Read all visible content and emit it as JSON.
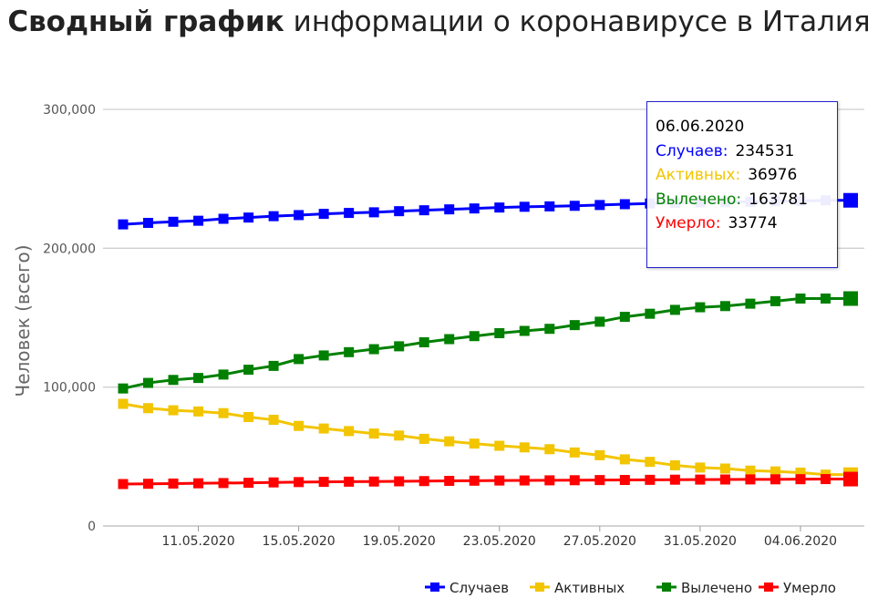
{
  "title": {
    "bold": "Сводный график",
    "rest": " информации о коронавирусе в Италия"
  },
  "tooltip": {
    "date": "06.06.2020",
    "rows": [
      {
        "label": "Случаев:",
        "value": "234531",
        "color": "#0000ff"
      },
      {
        "label": "Активных:",
        "value": "36976",
        "color": "#f2c500"
      },
      {
        "label": "Вылечено:",
        "value": "163781",
        "color": "#008000"
      },
      {
        "label": "Умерло:",
        "value": "33774",
        "color": "#ff0000"
      }
    ]
  },
  "chart_data": {
    "type": "line",
    "title": "Сводный график информации о коронавирусе в Италия",
    "xlabel": "",
    "ylabel": "Человек (всего)",
    "ylim": [
      0,
      300000
    ],
    "yticks": [
      "0",
      "100,000",
      "200,000",
      "300,000"
    ],
    "yticks_values": [
      0,
      100000,
      200000,
      300000
    ],
    "grid": true,
    "legend_position": "bottom-right",
    "x": [
      "08.05.2020",
      "09.05.2020",
      "10.05.2020",
      "11.05.2020",
      "12.05.2020",
      "13.05.2020",
      "14.05.2020",
      "15.05.2020",
      "16.05.2020",
      "17.05.2020",
      "18.05.2020",
      "19.05.2020",
      "20.05.2020",
      "21.05.2020",
      "22.05.2020",
      "23.05.2020",
      "24.05.2020",
      "25.05.2020",
      "26.05.2020",
      "27.05.2020",
      "28.05.2020",
      "29.05.2020",
      "30.05.2020",
      "31.05.2020",
      "01.06.2020",
      "02.06.2020",
      "03.06.2020",
      "04.06.2020",
      "05.06.2020",
      "06.06.2020"
    ],
    "xtick_labels": [
      "11.05.2020",
      "15.05.2020",
      "19.05.2020",
      "23.05.2020",
      "27.05.2020",
      "31.05.2020",
      "04.06.2020"
    ],
    "series": [
      {
        "name": "Случаев",
        "color": "#0000ff",
        "values": [
          217185,
          218268,
          219070,
          219814,
          221216,
          222104,
          223096,
          223885,
          224760,
          225435,
          225886,
          226699,
          227364,
          228006,
          228658,
          229327,
          229858,
          230158,
          230555,
          231139,
          231732,
          232248,
          232664,
          232997,
          233197,
          233515,
          233836,
          234013,
          234531,
          234531
        ]
      },
      {
        "name": "Активных",
        "color": "#f2c500",
        "values": [
          87961,
          84842,
          83324,
          82488,
          81266,
          78457,
          76440,
          72070,
          70187,
          68351,
          66553,
          65129,
          62752,
          60960,
          59322,
          57752,
          56594,
          55300,
          52942,
          50966,
          47986,
          46175,
          43691,
          42075,
          41367,
          39893,
          39297,
          38429,
          36976,
          36976
        ]
      },
      {
        "name": "Вылечено",
        "color": "#008000",
        "values": [
          99023,
          103031,
          105186,
          106587,
          109039,
          112541,
          115288,
          120205,
          122810,
          125176,
          127326,
          129401,
          132282,
          134560,
          136720,
          138840,
          140479,
          141981,
          144658,
          147101,
          150604,
          152844,
          155633,
          157507,
          158355,
          160092,
          161895,
          163781,
          163781,
          163781
        ]
      },
      {
        "name": "Умерло",
        "color": "#ff0000",
        "values": [
          30201,
          30395,
          30560,
          30739,
          30911,
          31106,
          31368,
          31610,
          31763,
          31908,
          32007,
          32169,
          32330,
          32486,
          32616,
          32735,
          32785,
          32877,
          32955,
          33072,
          33142,
          33229,
          33340,
          33415,
          33475,
          33530,
          33601,
          33689,
          33774,
          33774
        ]
      }
    ]
  }
}
